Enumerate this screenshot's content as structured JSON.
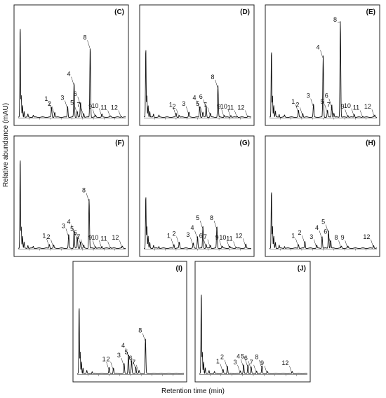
{
  "figure": {
    "ylabel": "Relative abundance (mAU)",
    "xlabel": "Retention time (min)"
  },
  "chart_data": [
    {
      "type": "line",
      "panel": "(C)",
      "peaks": [
        {
          "label": "1",
          "t": 0.31,
          "h": 0.1
        },
        {
          "label": "2",
          "t": 0.34,
          "h": 0.05
        },
        {
          "label": "3",
          "t": 0.46,
          "h": 0.11
        },
        {
          "label": "4",
          "t": 0.52,
          "h": 0.35
        },
        {
          "label": "5",
          "t": 0.55,
          "h": 0.06
        },
        {
          "label": "6",
          "t": 0.58,
          "h": 0.15
        },
        {
          "label": "7",
          "t": 0.61,
          "h": 0.04
        },
        {
          "label": "8",
          "t": 0.67,
          "h": 0.72
        },
        {
          "label": "9",
          "t": 0.72,
          "h": 0.02
        },
        {
          "label": "10",
          "t": 0.78,
          "h": 0.03
        },
        {
          "label": "11",
          "t": 0.86,
          "h": 0.01
        },
        {
          "label": "12",
          "t": 0.96,
          "h": 0.01
        }
      ]
    },
    {
      "type": "line",
      "panel": "(D)",
      "peaks": [
        {
          "label": "1",
          "t": 0.3,
          "h": 0.04
        },
        {
          "label": "2",
          "t": 0.33,
          "h": 0.02
        },
        {
          "label": "3",
          "t": 0.42,
          "h": 0.05
        },
        {
          "label": "4",
          "t": 0.52,
          "h": 0.11
        },
        {
          "label": "5",
          "t": 0.55,
          "h": 0.05
        },
        {
          "label": "6",
          "t": 0.58,
          "h": 0.12
        },
        {
          "label": "7",
          "t": 0.62,
          "h": 0.04
        },
        {
          "label": "8",
          "t": 0.69,
          "h": 0.32
        },
        {
          "label": "9",
          "t": 0.75,
          "h": 0.02
        },
        {
          "label": "10",
          "t": 0.81,
          "h": 0.02
        },
        {
          "label": "11",
          "t": 0.87,
          "h": 0.01
        },
        {
          "label": "12",
          "t": 0.97,
          "h": 0.01
        }
      ]
    },
    {
      "type": "line",
      "panel": "(E)",
      "peaks": [
        {
          "label": "1",
          "t": 0.27,
          "h": 0.07
        },
        {
          "label": "2",
          "t": 0.31,
          "h": 0.04
        },
        {
          "label": "3",
          "t": 0.41,
          "h": 0.13
        },
        {
          "label": "4",
          "t": 0.5,
          "h": 0.62
        },
        {
          "label": "5",
          "t": 0.54,
          "h": 0.07
        },
        {
          "label": "6",
          "t": 0.58,
          "h": 0.13
        },
        {
          "label": "7",
          "t": 0.6,
          "h": 0.04
        },
        {
          "label": "8",
          "t": 0.66,
          "h": 0.98
        },
        {
          "label": "9",
          "t": 0.73,
          "h": 0.02
        },
        {
          "label": "10",
          "t": 0.79,
          "h": 0.03
        },
        {
          "label": "11",
          "t": 0.87,
          "h": 0.01
        },
        {
          "label": "12",
          "t": 0.98,
          "h": 0.02
        }
      ]
    },
    {
      "type": "line",
      "panel": "(F)",
      "peaks": [
        {
          "label": "1",
          "t": 0.29,
          "h": 0.04
        },
        {
          "label": "2",
          "t": 0.33,
          "h": 0.03
        },
        {
          "label": "3",
          "t": 0.47,
          "h": 0.14
        },
        {
          "label": "4",
          "t": 0.52,
          "h": 0.18
        },
        {
          "label": "5",
          "t": 0.55,
          "h": 0.11
        },
        {
          "label": "6",
          "t": 0.58,
          "h": 0.07
        },
        {
          "label": "7",
          "t": 0.61,
          "h": 0.03
        },
        {
          "label": "8",
          "t": 0.66,
          "h": 0.5
        },
        {
          "label": "9",
          "t": 0.72,
          "h": 0.02
        },
        {
          "label": "10",
          "t": 0.78,
          "h": 0.02
        },
        {
          "label": "11",
          "t": 0.86,
          "h": 0.01
        },
        {
          "label": "12",
          "t": 0.97,
          "h": 0.02
        }
      ]
    },
    {
      "type": "line",
      "panel": "(G)",
      "peaks": [
        {
          "label": "1",
          "t": 0.28,
          "h": 0.04
        },
        {
          "label": "2",
          "t": 0.33,
          "h": 0.06
        },
        {
          "label": "3",
          "t": 0.46,
          "h": 0.05
        },
        {
          "label": "4",
          "t": 0.5,
          "h": 0.12
        },
        {
          "label": "5",
          "t": 0.55,
          "h": 0.22
        },
        {
          "label": "6",
          "t": 0.58,
          "h": 0.04
        },
        {
          "label": "7",
          "t": 0.62,
          "h": 0.03
        },
        {
          "label": "8",
          "t": 0.68,
          "h": 0.22
        },
        {
          "label": "9",
          "t": 0.73,
          "h": 0.02
        },
        {
          "label": "10",
          "t": 0.8,
          "h": 0.02
        },
        {
          "label": "11",
          "t": 0.86,
          "h": 0.01
        },
        {
          "label": "12",
          "t": 0.95,
          "h": 0.04
        }
      ]
    },
    {
      "type": "line",
      "panel": "(H)",
      "peaks": [
        {
          "label": "1",
          "t": 0.27,
          "h": 0.04
        },
        {
          "label": "2",
          "t": 0.33,
          "h": 0.07
        },
        {
          "label": "3",
          "t": 0.44,
          "h": 0.03
        },
        {
          "label": "4",
          "t": 0.49,
          "h": 0.12
        },
        {
          "label": "5",
          "t": 0.55,
          "h": 0.18
        },
        {
          "label": "6",
          "t": 0.57,
          "h": 0.08
        },
        {
          "label": "8",
          "t": 0.67,
          "h": 0.02
        },
        {
          "label": "9",
          "t": 0.73,
          "h": 0.02
        },
        {
          "label": "12",
          "t": 0.97,
          "h": 0.03
        }
      ]
    },
    {
      "type": "line",
      "panel": "(I)",
      "peaks": [
        {
          "label": "1",
          "t": 0.3,
          "h": 0.06
        },
        {
          "label": "2",
          "t": 0.34,
          "h": 0.06
        },
        {
          "label": "3",
          "t": 0.44,
          "h": 0.1
        },
        {
          "label": "4",
          "t": 0.48,
          "h": 0.2
        },
        {
          "label": "5",
          "t": 0.51,
          "h": 0.13
        },
        {
          "label": "6",
          "t": 0.55,
          "h": 0.07
        },
        {
          "label": "7",
          "t": 0.58,
          "h": 0.03
        },
        {
          "label": "8",
          "t": 0.64,
          "h": 0.35
        }
      ]
    },
    {
      "type": "line",
      "panel": "(J)",
      "peaks": [
        {
          "label": "1",
          "t": 0.22,
          "h": 0.04
        },
        {
          "label": "2",
          "t": 0.26,
          "h": 0.08
        },
        {
          "label": "3",
          "t": 0.38,
          "h": 0.03
        },
        {
          "label": "4",
          "t": 0.41,
          "h": 0.09
        },
        {
          "label": "5",
          "t": 0.45,
          "h": 0.09
        },
        {
          "label": "6",
          "t": 0.48,
          "h": 0.07
        },
        {
          "label": "7",
          "t": 0.53,
          "h": 0.03
        },
        {
          "label": "8",
          "t": 0.58,
          "h": 0.08
        },
        {
          "label": "9",
          "t": 0.63,
          "h": 0.02
        },
        {
          "label": "12",
          "t": 0.86,
          "h": 0.02
        }
      ]
    }
  ]
}
